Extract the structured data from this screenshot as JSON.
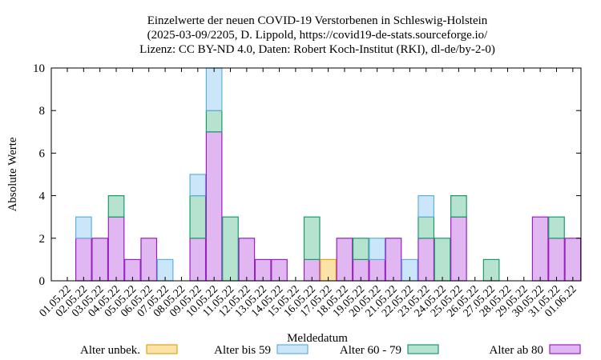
{
  "chart_data": {
    "type": "bar",
    "stacked": true,
    "title": [
      "Einzelwerte der neuen COVID-19 Verstorbenen in Schleswig-Holstein",
      "(2025-03-09/2205, D. Lippold, https://covid19-de-stats.sourceforge.io/",
      "Lizenz: CC BY-ND 4.0, Daten: Robert Koch-Institut (RKI), dl-de/by-2-0)"
    ],
    "xlabel": "Meldedatum",
    "ylabel": "Absolute Werte",
    "ylim": [
      0,
      10
    ],
    "yticks": [
      "0",
      "2",
      "4",
      "6",
      "8",
      "10"
    ],
    "legend_position": "bottom",
    "categories": [
      "01.05.22",
      "02.05.22",
      "03.05.22",
      "04.05.22",
      "05.05.22",
      "06.05.22",
      "07.05.22",
      "08.05.22",
      "09.05.22",
      "10.05.22",
      "11.05.22",
      "12.05.22",
      "13.05.22",
      "14.05.22",
      "15.05.22",
      "16.05.22",
      "17.05.22",
      "18.05.22",
      "19.05.22",
      "20.05.22",
      "21.05.22",
      "22.05.22",
      "23.05.22",
      "24.05.22",
      "25.05.22",
      "26.05.22",
      "27.05.22",
      "28.05.22",
      "29.05.22",
      "30.05.22",
      "31.05.22",
      "01.06.22"
    ],
    "series": [
      {
        "name": "Alter ab 80",
        "fill": "#e0b7f0",
        "stroke": "#9a1fc2",
        "values": [
          0,
          2,
          2,
          3,
          1,
          2,
          0,
          0,
          2,
          7,
          0,
          2,
          1,
          1,
          0,
          1,
          0,
          2,
          1,
          1,
          2,
          0,
          2,
          0,
          3,
          0,
          0,
          0,
          0,
          3,
          2,
          2
        ]
      },
      {
        "name": "Alter 60 - 79",
        "fill": "#b5e3cf",
        "stroke": "#1a9a6a",
        "values": [
          0,
          0,
          0,
          1,
          0,
          0,
          0,
          0,
          2,
          1,
          3,
          0,
          0,
          0,
          0,
          2,
          0,
          0,
          1,
          0,
          0,
          0,
          1,
          2,
          1,
          0,
          1,
          0,
          0,
          0,
          1,
          0
        ]
      },
      {
        "name": "Alter bis 59",
        "fill": "#cbe6f8",
        "stroke": "#5fb0dc",
        "values": [
          0,
          1,
          0,
          0,
          0,
          0,
          1,
          0,
          1,
          2,
          0,
          0,
          0,
          0,
          0,
          0,
          0,
          0,
          0,
          1,
          0,
          1,
          1,
          0,
          0,
          0,
          0,
          0,
          0,
          0,
          0,
          0
        ]
      },
      {
        "name": "Alter unbek.",
        "fill": "#fbe3a8",
        "stroke": "#e0a21a",
        "values": [
          0,
          0,
          0,
          0,
          0,
          0,
          0,
          0,
          0,
          0,
          0,
          0,
          0,
          0,
          0,
          0,
          1,
          0,
          0,
          0,
          0,
          0,
          0,
          0,
          0,
          0,
          0,
          0,
          0,
          0,
          0,
          0
        ]
      }
    ],
    "legend": [
      "Alter unbek.",
      "Alter bis 59",
      "Alter 60 - 79",
      "Alter ab 80"
    ]
  }
}
